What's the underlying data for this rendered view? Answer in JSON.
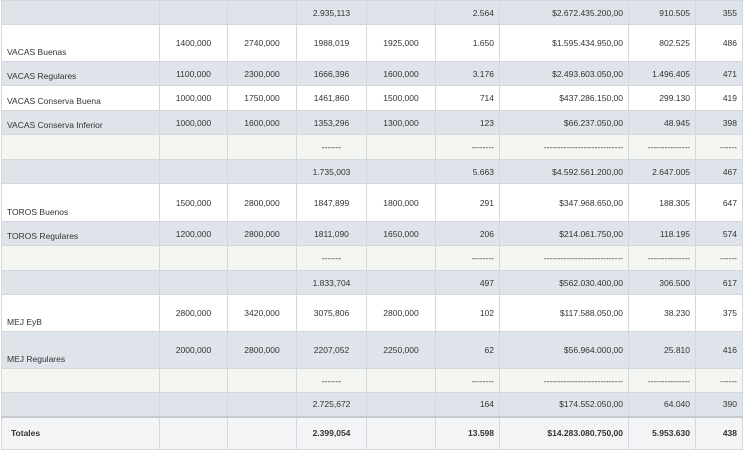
{
  "rows": [
    {
      "style": "shade",
      "h": 24,
      "cells": [
        "",
        "",
        "",
        "2.935,113",
        "",
        "2.564",
        "$2.672.435.200,00",
        "910.505",
        "355"
      ]
    },
    {
      "style": "white",
      "h": 37,
      "cells": [
        "VACAS Buenas",
        "1400,000",
        "2740,000",
        "1988,019",
        "1925,000",
        "1.650",
        "$1.595.434.950,00",
        "802.525",
        "486"
      ]
    },
    {
      "style": "shade",
      "h": 24,
      "cells": [
        "VACAS Regulares",
        "1100,000",
        "2300,000",
        "1666,396",
        "1600,000",
        "3.176",
        "$2.493.603.050,00",
        "1.496.405",
        "471"
      ]
    },
    {
      "style": "white",
      "h": 25,
      "cells": [
        "VACAS Conserva Buena",
        "1000,000",
        "1750,000",
        "1461,860",
        "1500,000",
        "714",
        "$437.286.150,00",
        "299.130",
        "419"
      ]
    },
    {
      "style": "shade",
      "h": 24,
      "cells": [
        "VACAS Conserva Inferior",
        "1000,000",
        "1600,000",
        "1353,296",
        "1300,000",
        "123",
        "$66.237.050,00",
        "48.945",
        "398"
      ]
    },
    {
      "style": "light",
      "h": 25,
      "cells": [
        "",
        "",
        "",
        "-------",
        "",
        "--------",
        "----------------------------",
        "---------------",
        "------"
      ]
    },
    {
      "style": "shade",
      "h": 24,
      "cells": [
        "",
        "",
        "",
        "1.735,003",
        "",
        "5.663",
        "$4.592.561.200,00",
        "2.647.005",
        "467"
      ]
    },
    {
      "style": "white",
      "h": 38,
      "cells": [
        "TOROS Buenos",
        "1500,000",
        "2800,000",
        "1847,899",
        "1800,000",
        "291",
        "$347.968.650,00",
        "188.305",
        "647"
      ]
    },
    {
      "style": "shade",
      "h": 24,
      "cells": [
        "TOROS Regulares",
        "1200,000",
        "2800,000",
        "1811,090",
        "1650,000",
        "206",
        "$214.061.750,00",
        "118.195",
        "574"
      ]
    },
    {
      "style": "light",
      "h": 25,
      "cells": [
        "",
        "",
        "",
        "-------",
        "",
        "--------",
        "----------------------------",
        "---------------",
        "------"
      ]
    },
    {
      "style": "shade",
      "h": 24,
      "cells": [
        "",
        "",
        "",
        "1.833,704",
        "",
        "497",
        "$562.030.400,00",
        "306.500",
        "617"
      ]
    },
    {
      "style": "white",
      "h": 37,
      "cells": [
        "MEJ EyB",
        "2800,000",
        "3420,000",
        "3075,806",
        "2800,000",
        "102",
        "$117.588.050,00",
        "38.230",
        "375"
      ]
    },
    {
      "style": "shade",
      "h": 37,
      "cells": [
        "MEJ Regulares",
        "2000,000",
        "2800,000",
        "2207,052",
        "2250,000",
        "62",
        "$56.964.000,00",
        "25.810",
        "416"
      ]
    },
    {
      "style": "light",
      "h": 24,
      "cells": [
        "",
        "",
        "",
        "-------",
        "",
        "--------",
        "----------------------------",
        "---------------",
        "------"
      ]
    },
    {
      "style": "shade",
      "h": 24,
      "cells": [
        "",
        "",
        "",
        "2.725,672",
        "",
        "164",
        "$174.552.050,00",
        "64.040",
        "390"
      ]
    }
  ],
  "totals": {
    "cells": [
      "Totales",
      "",
      "",
      "2.399,054",
      "",
      "13.598",
      "$14.283.080.750,00",
      "5.953.630",
      "438"
    ]
  }
}
